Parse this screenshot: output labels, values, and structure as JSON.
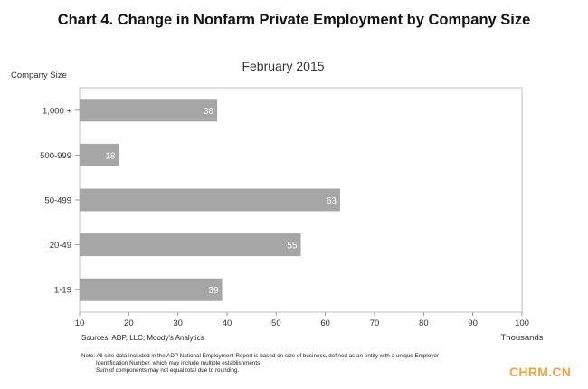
{
  "page": {
    "title": "Chart 4. Change in Nonfarm Private Employment by Company Size",
    "sources": "Sources: ADP, LLC; Moody's Analytics",
    "notes": [
      "Note: All size data included in the ADP National Employment Report is based on size of business, defined as an entity with a unique Employer",
      "Identification Number, which may include multiple establishments.",
      "Sum of components may not equal total due to rounding."
    ],
    "watermark": "CHRM.CN"
  },
  "chart_data": {
    "type": "bar",
    "orientation": "horizontal",
    "title": "February 2015",
    "ylabel": "Company Size",
    "xlabel": "Thousands",
    "categories": [
      "1,000 +",
      "500-999",
      "50-499",
      "20-49",
      "1-19"
    ],
    "values": [
      38,
      18,
      63,
      55,
      39
    ],
    "xlim": [
      10,
      100
    ],
    "xticks": [
      10,
      20,
      30,
      40,
      50,
      60,
      70,
      80,
      90,
      100
    ],
    "grid": false,
    "data_labels": true,
    "bar_color": "#a6a6a6",
    "label_color": "#ffffff"
  }
}
